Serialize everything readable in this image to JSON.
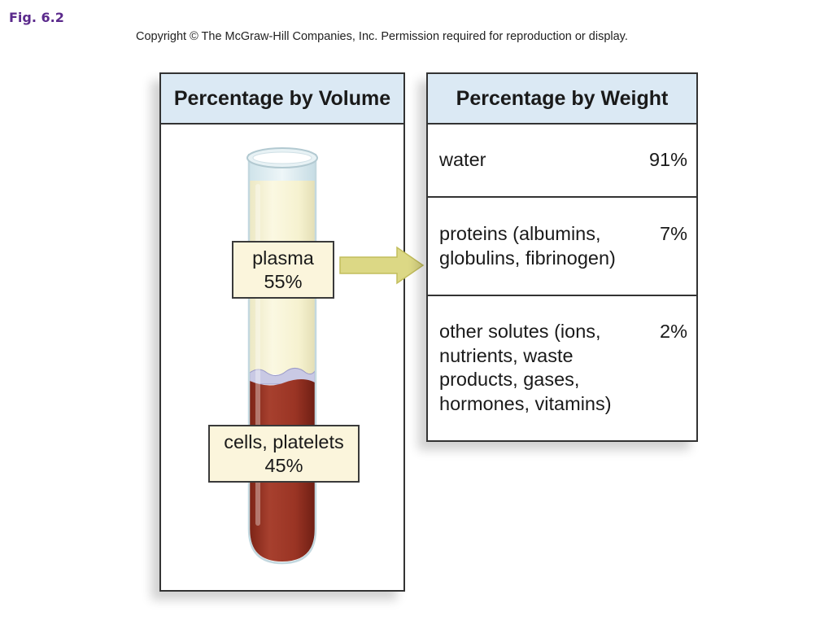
{
  "figure_label": "Fig. 6.2",
  "copyright": "Copyright © The McGraw-Hill Companies, Inc. Permission required for reproduction or display.",
  "volume_panel": {
    "title": "Percentage by Volume",
    "plasma": {
      "label": "plasma",
      "percent": "55%"
    },
    "cells": {
      "label": "cells, platelets",
      "percent": "45%"
    }
  },
  "weight_panel": {
    "title": "Percentage by Weight",
    "rows": [
      {
        "label": "water",
        "value": "91%"
      },
      {
        "label": "proteins (albumins,\nglobulins, fibrinogen)",
        "value": "7%"
      },
      {
        "label": "other solutes (ions,\nnutrients, waste\nproducts, gases,\nhormones, vitamins)",
        "value": "2%"
      }
    ]
  },
  "colors": {
    "header_bg": "#dbe9f4",
    "plasma": "#f7f3d2",
    "cells": "#9e3526",
    "callout_bg": "#fbf5dc",
    "arrow": "#d8d37a",
    "figure_label": "#5b2a8c"
  }
}
